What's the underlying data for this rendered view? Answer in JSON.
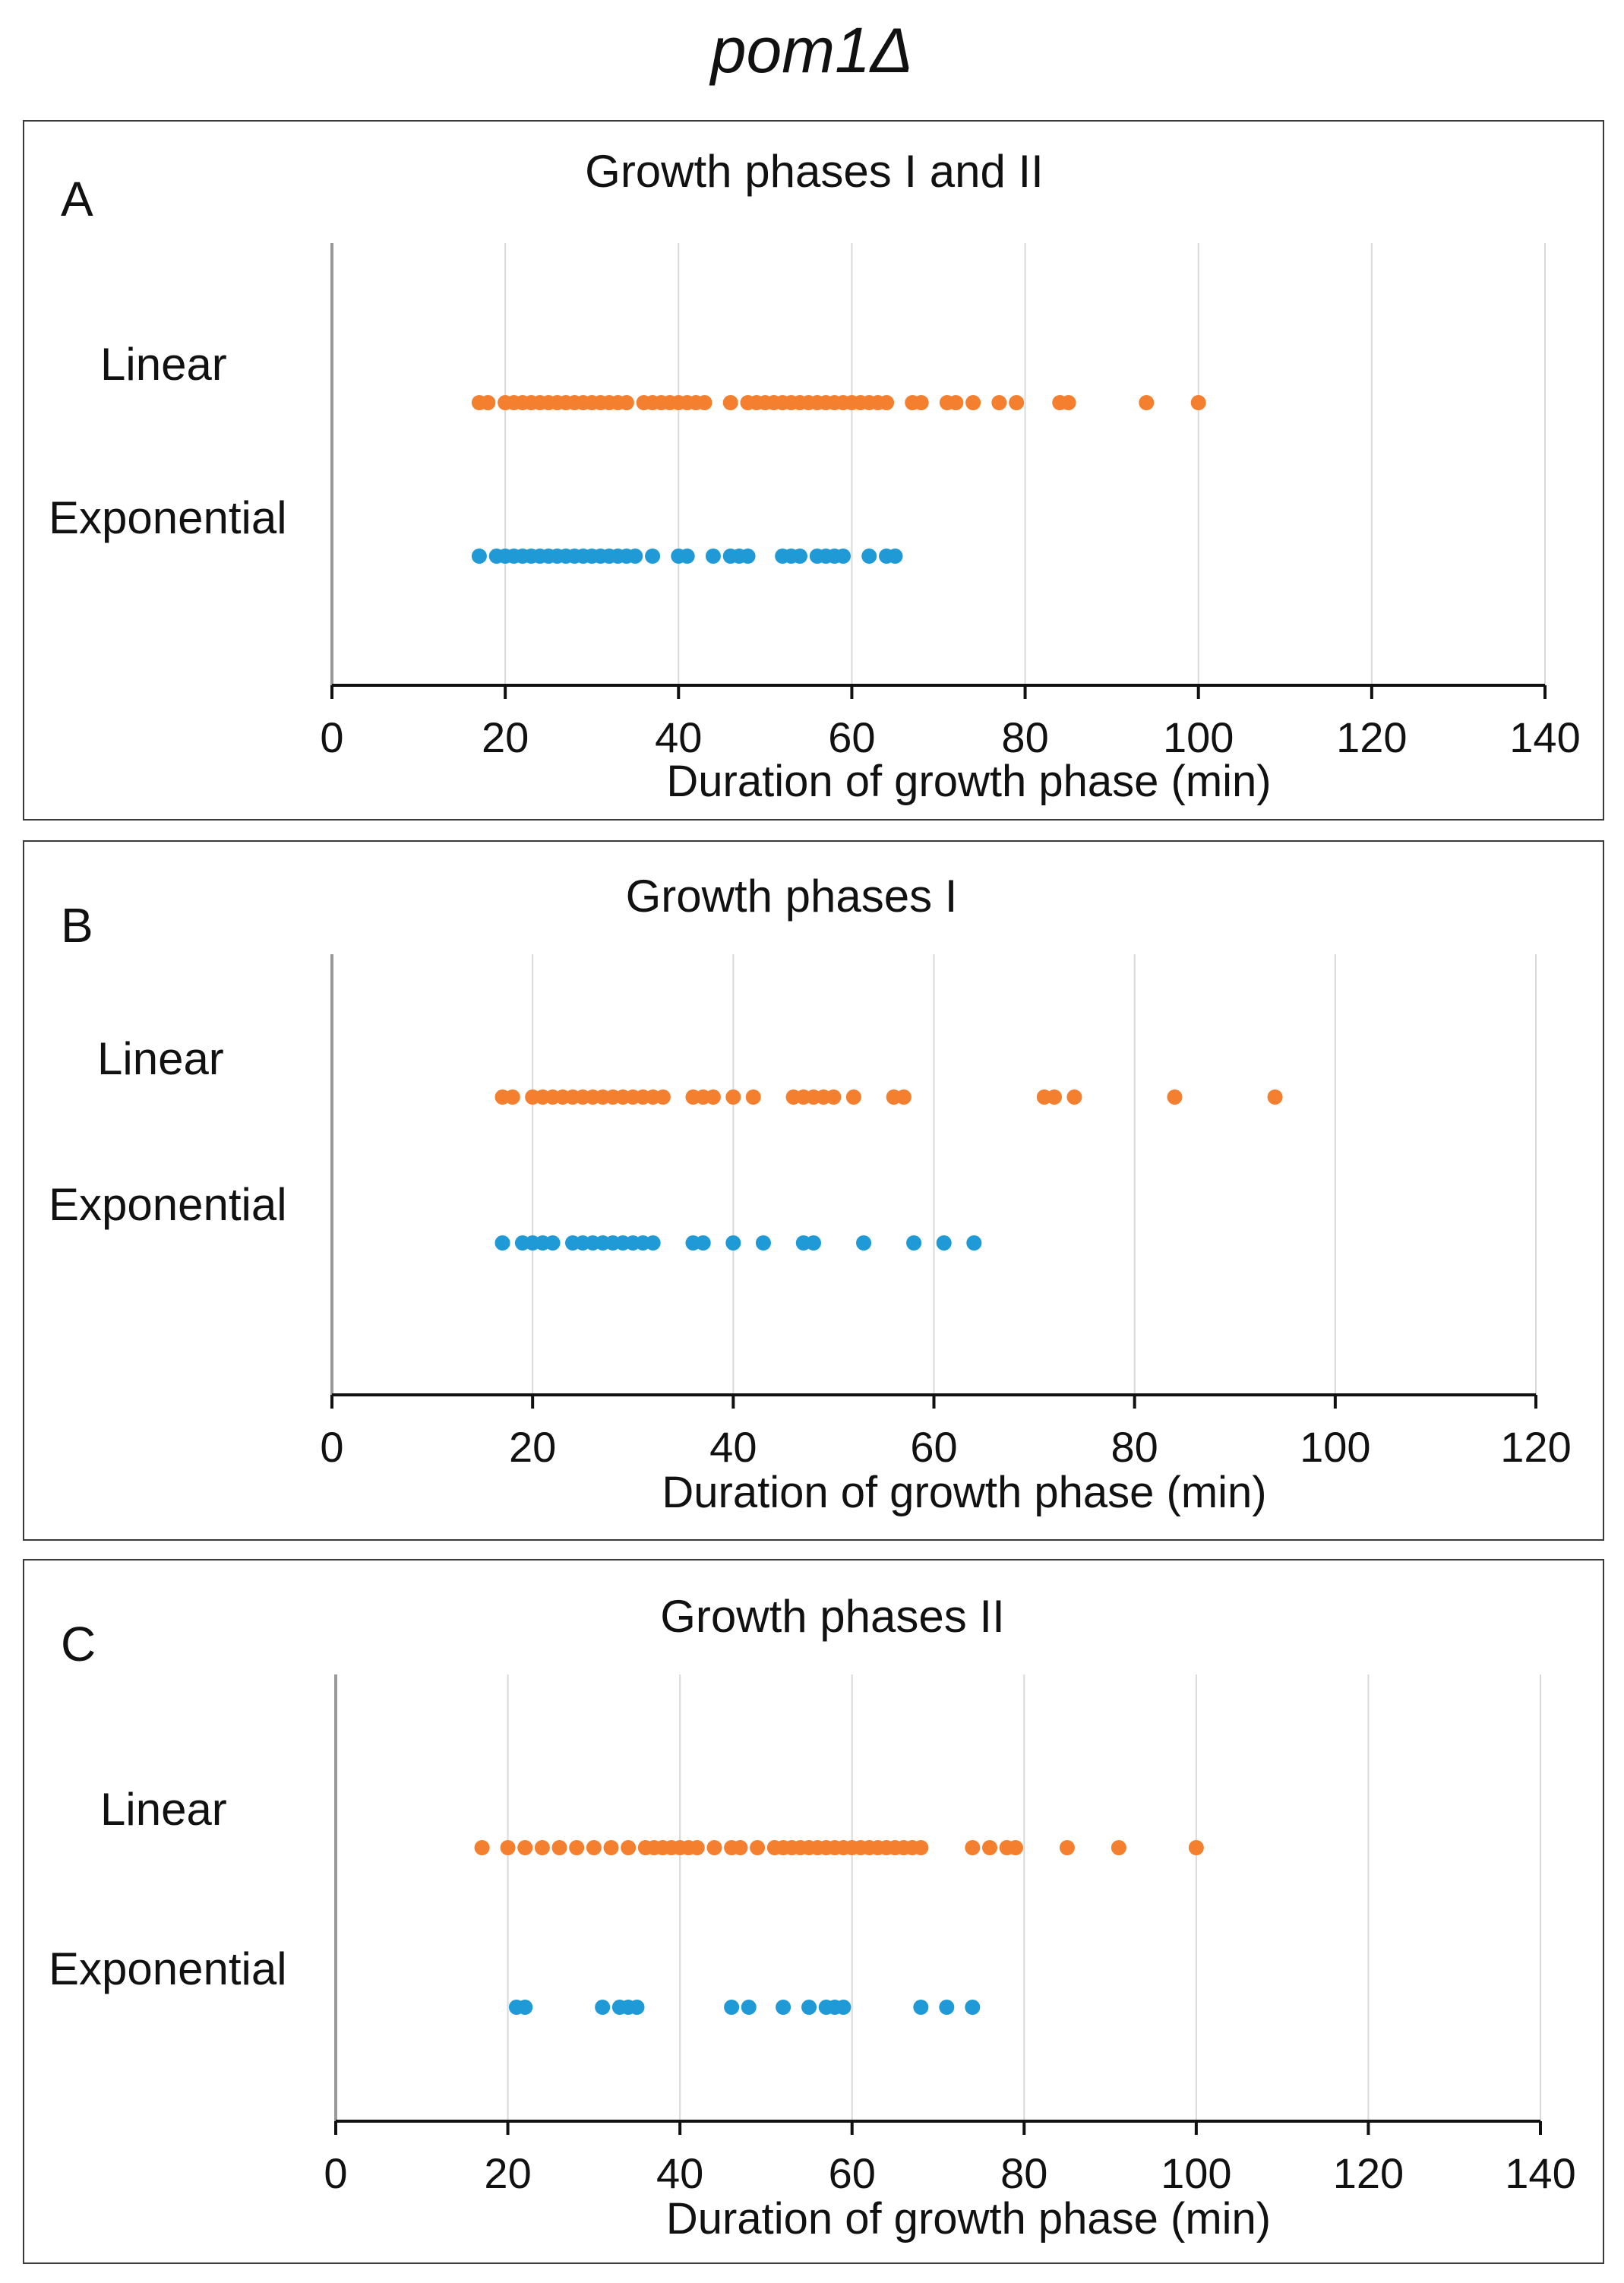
{
  "figure_title": "pom1Δ",
  "series_colors": {
    "Linear": "#f47f2f",
    "Exponential": "#1f9ad6"
  },
  "chart_data": [
    {
      "type": "scatter",
      "panel_label": "A",
      "title": "Growth phases I and II",
      "xlabel": "Duration of growth phase (min)",
      "xlim": [
        0,
        140
      ],
      "xticks": [
        0,
        20,
        40,
        60,
        80,
        100,
        120,
        140
      ],
      "categories": [
        "Linear",
        "Exponential"
      ],
      "grid": "vertical",
      "series": [
        {
          "name": "Linear",
          "values": [
            17,
            18,
            20,
            21,
            22,
            23,
            24,
            25,
            26,
            27,
            28,
            29,
            30,
            31,
            32,
            33,
            34,
            36,
            37,
            38,
            39,
            40,
            41,
            42,
            43,
            46,
            48,
            49,
            50,
            51,
            52,
            53,
            54,
            55,
            56,
            57,
            58,
            59,
            60,
            61,
            62,
            63,
            64,
            67,
            68,
            71,
            72,
            74,
            77,
            79,
            84,
            85,
            94,
            100
          ]
        },
        {
          "name": "Exponential",
          "values": [
            17,
            19,
            20,
            21,
            22,
            23,
            24,
            25,
            26,
            27,
            28,
            29,
            30,
            31,
            32,
            33,
            34,
            35,
            37,
            40,
            41,
            44,
            46,
            47,
            48,
            52,
            53,
            54,
            56,
            57,
            58,
            59,
            62,
            64,
            65
          ]
        }
      ]
    },
    {
      "type": "scatter",
      "panel_label": "B",
      "title": "Growth phases I",
      "xlabel": "Duration of growth phase (min)",
      "xlim": [
        0,
        120
      ],
      "xticks": [
        0,
        20,
        40,
        60,
        80,
        100,
        120
      ],
      "categories": [
        "Linear",
        "Exponential"
      ],
      "grid": "vertical",
      "series": [
        {
          "name": "Linear",
          "values": [
            17,
            18,
            20,
            21,
            22,
            23,
            24,
            25,
            26,
            27,
            28,
            29,
            30,
            31,
            32,
            33,
            36,
            37,
            38,
            40,
            42,
            46,
            47,
            48,
            49,
            50,
            52,
            56,
            57,
            71,
            72,
            74,
            84,
            94
          ]
        },
        {
          "name": "Exponential",
          "values": [
            17,
            19,
            20,
            21,
            22,
            24,
            25,
            26,
            27,
            28,
            29,
            30,
            31,
            32,
            36,
            37,
            40,
            43,
            47,
            48,
            53,
            58,
            61,
            64
          ]
        }
      ]
    },
    {
      "type": "scatter",
      "panel_label": "C",
      "title": "Growth phases II",
      "xlabel": "Duration of growth phase  (min)",
      "xlim": [
        0,
        140
      ],
      "xticks": [
        0,
        20,
        40,
        60,
        80,
        100,
        120,
        140
      ],
      "categories": [
        "Linear",
        "Exponential"
      ],
      "grid": "vertical",
      "series": [
        {
          "name": "Linear",
          "values": [
            17,
            20,
            22,
            24,
            26,
            28,
            30,
            32,
            34,
            36,
            37,
            38,
            39,
            40,
            41,
            42,
            44,
            46,
            47,
            49,
            51,
            52,
            53,
            54,
            55,
            56,
            57,
            58,
            59,
            60,
            61,
            62,
            63,
            64,
            65,
            66,
            67,
            68,
            74,
            76,
            78,
            79,
            85,
            91,
            100
          ]
        },
        {
          "name": "Exponential",
          "values": [
            21,
            22,
            31,
            33,
            34,
            35,
            46,
            48,
            52,
            55,
            57,
            58,
            59,
            68,
            71,
            74
          ]
        }
      ]
    }
  ]
}
